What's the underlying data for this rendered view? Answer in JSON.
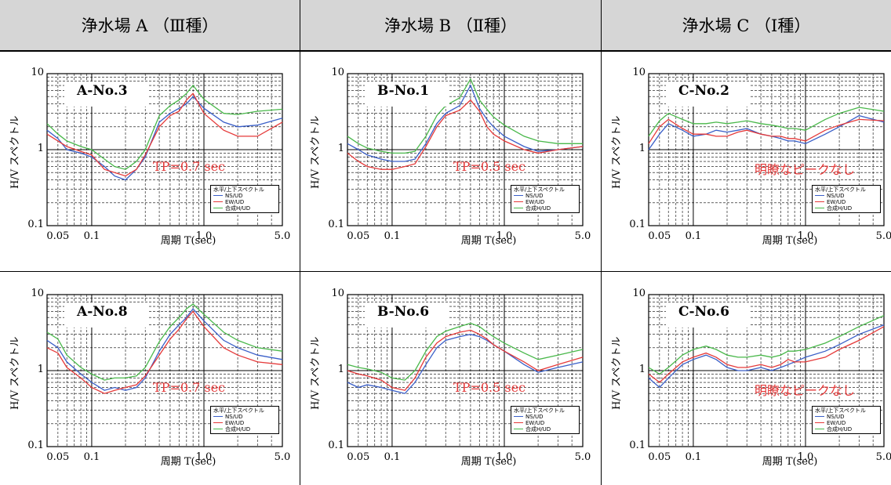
{
  "headers": [
    "浄水場 A （Ⅲ種）",
    "浄水場 B （Ⅱ種）",
    "浄水場 C （Ⅰ種）"
  ],
  "axis": {
    "ylabel": "H/V スペクトル",
    "xlabel": "周期 T(sec)",
    "y_ticks": [
      "10",
      "1",
      "0.1"
    ],
    "x_ticks": [
      "0.05",
      "0.1",
      "1.0",
      "5.0"
    ]
  },
  "legend": {
    "title": "水平/上下スペクトル",
    "items": [
      "NS/UD",
      "EW/UD",
      "合成H/UD"
    ]
  },
  "colors": {
    "ns": "#3a5fc8",
    "ew": "#e53a3a",
    "h": "#49b84a"
  },
  "chart_data": [
    {
      "type": "line",
      "title": "A-No.3",
      "annotation": "TP=0.7 sec",
      "x_scale": "log",
      "y_scale": "log",
      "xlim": [
        0.04,
        5.0
      ],
      "ylim": [
        0.1,
        10
      ],
      "grid": true,
      "legend_position": "bottom-right",
      "series": [
        {
          "name": "NS/UD",
          "x": [
            0.04,
            0.05,
            0.06,
            0.08,
            0.1,
            0.13,
            0.16,
            0.2,
            0.25,
            0.3,
            0.4,
            0.5,
            0.6,
            0.7,
            0.8,
            1.0,
            1.5,
            2.0,
            3.0,
            5.0
          ],
          "y": [
            1.8,
            1.4,
            1.0,
            0.9,
            0.8,
            0.6,
            0.45,
            0.4,
            0.55,
            0.8,
            2.3,
            3.0,
            3.5,
            4.0,
            5.0,
            3.5,
            2.3,
            2.0,
            2.1,
            2.6
          ]
        },
        {
          "name": "EW/UD",
          "x": [
            0.04,
            0.05,
            0.06,
            0.08,
            0.1,
            0.13,
            0.16,
            0.2,
            0.25,
            0.3,
            0.4,
            0.5,
            0.6,
            0.7,
            0.8,
            1.0,
            1.5,
            2.0,
            3.0,
            5.0
          ],
          "y": [
            1.6,
            1.3,
            1.1,
            0.95,
            0.85,
            0.55,
            0.5,
            0.45,
            0.55,
            0.85,
            2.0,
            2.8,
            3.2,
            4.5,
            5.5,
            3.0,
            1.8,
            1.5,
            1.5,
            2.3
          ]
        },
        {
          "name": "合成H/UD",
          "x": [
            0.04,
            0.05,
            0.06,
            0.08,
            0.1,
            0.13,
            0.16,
            0.2,
            0.25,
            0.3,
            0.4,
            0.5,
            0.6,
            0.7,
            0.8,
            1.0,
            1.5,
            2.0,
            3.0,
            5.0
          ],
          "y": [
            2.2,
            1.6,
            1.3,
            1.1,
            1.0,
            0.75,
            0.6,
            0.55,
            0.7,
            1.0,
            2.8,
            3.8,
            4.5,
            5.5,
            7.0,
            4.6,
            3.0,
            2.9,
            3.2,
            3.4
          ]
        }
      ]
    },
    {
      "type": "line",
      "title": "B-No.1",
      "annotation": "TP=0.5 sec",
      "x_scale": "log",
      "y_scale": "log",
      "xlim": [
        0.04,
        5.0
      ],
      "ylim": [
        0.1,
        10
      ],
      "grid": true,
      "legend_position": "bottom-right",
      "series": [
        {
          "name": "NS/UD",
          "x": [
            0.04,
            0.05,
            0.06,
            0.08,
            0.1,
            0.13,
            0.16,
            0.2,
            0.25,
            0.3,
            0.4,
            0.5,
            0.6,
            0.7,
            0.8,
            1.0,
            1.5,
            2.0,
            3.0,
            5.0
          ],
          "y": [
            1.2,
            1.0,
            0.85,
            0.75,
            0.7,
            0.7,
            0.75,
            1.2,
            2.2,
            3.0,
            3.8,
            7.0,
            3.5,
            2.5,
            2.0,
            1.5,
            1.1,
            0.95,
            1.0,
            1.1
          ]
        },
        {
          "name": "EW/UD",
          "x": [
            0.04,
            0.05,
            0.06,
            0.08,
            0.1,
            0.13,
            0.16,
            0.2,
            0.25,
            0.3,
            0.4,
            0.5,
            0.6,
            0.7,
            0.8,
            1.0,
            1.5,
            2.0,
            3.0,
            5.0
          ],
          "y": [
            0.9,
            0.7,
            0.6,
            0.55,
            0.55,
            0.6,
            0.65,
            1.1,
            2.0,
            2.8,
            3.3,
            4.5,
            3.2,
            2.0,
            1.6,
            1.3,
            1.0,
            0.9,
            1.0,
            1.1
          ]
        },
        {
          "name": "合成H/UD",
          "x": [
            0.04,
            0.05,
            0.06,
            0.08,
            0.1,
            0.13,
            0.16,
            0.2,
            0.25,
            0.3,
            0.4,
            0.5,
            0.6,
            0.7,
            0.8,
            1.0,
            1.5,
            2.0,
            3.0,
            5.0
          ],
          "y": [
            1.5,
            1.2,
            1.05,
            0.95,
            0.9,
            0.9,
            0.95,
            1.5,
            2.8,
            3.8,
            4.8,
            8.5,
            4.5,
            3.4,
            2.7,
            2.1,
            1.5,
            1.3,
            1.2,
            1.2
          ]
        }
      ]
    },
    {
      "type": "line",
      "title": "C-No.2",
      "annotation": "明瞭なピークなし",
      "x_scale": "log",
      "y_scale": "log",
      "xlim": [
        0.04,
        5.0
      ],
      "ylim": [
        0.1,
        10
      ],
      "grid": true,
      "legend_position": "bottom-right",
      "series": [
        {
          "name": "NS/UD",
          "x": [
            0.04,
            0.05,
            0.06,
            0.08,
            0.1,
            0.13,
            0.16,
            0.2,
            0.25,
            0.3,
            0.4,
            0.5,
            0.6,
            0.7,
            0.8,
            1.0,
            1.5,
            2.0,
            3.0,
            5.0
          ],
          "y": [
            1.0,
            1.6,
            2.2,
            1.8,
            1.5,
            1.6,
            1.8,
            1.7,
            1.8,
            1.9,
            1.6,
            1.5,
            1.4,
            1.3,
            1.3,
            1.2,
            1.6,
            2.0,
            2.8,
            2.3
          ]
        },
        {
          "name": "EW/UD",
          "x": [
            0.04,
            0.05,
            0.06,
            0.08,
            0.1,
            0.13,
            0.16,
            0.2,
            0.25,
            0.3,
            0.4,
            0.5,
            0.6,
            0.7,
            0.8,
            1.0,
            1.5,
            2.0,
            3.0,
            5.0
          ],
          "y": [
            1.2,
            2.0,
            2.5,
            1.9,
            1.6,
            1.6,
            1.5,
            1.5,
            1.7,
            1.8,
            1.6,
            1.5,
            1.5,
            1.4,
            1.4,
            1.3,
            1.8,
            2.1,
            2.5,
            2.4
          ]
        },
        {
          "name": "合成H/UD",
          "x": [
            0.04,
            0.05,
            0.06,
            0.08,
            0.1,
            0.13,
            0.16,
            0.2,
            0.25,
            0.3,
            0.4,
            0.5,
            0.6,
            0.7,
            0.8,
            1.0,
            1.5,
            2.0,
            3.0,
            5.0
          ],
          "y": [
            1.5,
            2.4,
            3.0,
            2.5,
            2.2,
            2.2,
            2.3,
            2.2,
            2.3,
            2.4,
            2.2,
            2.1,
            2.0,
            1.9,
            1.9,
            1.8,
            2.5,
            3.0,
            3.6,
            3.2
          ]
        }
      ]
    },
    {
      "type": "line",
      "title": "A-No.8",
      "annotation": "TP=0.7 sec",
      "x_scale": "log",
      "y_scale": "log",
      "xlim": [
        0.04,
        5.0
      ],
      "ylim": [
        0.1,
        10
      ],
      "grid": true,
      "legend_position": "bottom-right",
      "series": [
        {
          "name": "NS/UD",
          "x": [
            0.04,
            0.05,
            0.06,
            0.08,
            0.1,
            0.13,
            0.16,
            0.2,
            0.25,
            0.3,
            0.4,
            0.5,
            0.6,
            0.7,
            0.8,
            1.0,
            1.5,
            2.0,
            3.0,
            5.0
          ],
          "y": [
            2.5,
            2.0,
            1.3,
            0.9,
            0.7,
            0.55,
            0.6,
            0.55,
            0.6,
            0.8,
            1.8,
            3.0,
            4.0,
            5.0,
            6.5,
            4.5,
            2.5,
            2.0,
            1.6,
            1.4
          ]
        },
        {
          "name": "EW/UD",
          "x": [
            0.04,
            0.05,
            0.06,
            0.08,
            0.1,
            0.13,
            0.16,
            0.2,
            0.25,
            0.3,
            0.4,
            0.5,
            0.6,
            0.7,
            0.8,
            1.0,
            1.5,
            2.0,
            3.0,
            5.0
          ],
          "y": [
            2.0,
            1.7,
            1.1,
            0.8,
            0.6,
            0.5,
            0.55,
            0.6,
            0.65,
            0.85,
            1.6,
            2.6,
            3.5,
            4.8,
            6.0,
            3.8,
            2.0,
            1.6,
            1.3,
            1.2
          ]
        },
        {
          "name": "合成H/UD",
          "x": [
            0.04,
            0.05,
            0.06,
            0.08,
            0.1,
            0.13,
            0.16,
            0.2,
            0.25,
            0.3,
            0.4,
            0.5,
            0.6,
            0.7,
            0.8,
            1.0,
            1.5,
            2.0,
            3.0,
            5.0
          ],
          "y": [
            3.2,
            2.6,
            1.6,
            1.1,
            0.9,
            0.75,
            0.8,
            0.8,
            0.85,
            1.1,
            2.4,
            3.8,
            5.0,
            6.5,
            7.5,
            5.5,
            3.2,
            2.5,
            2.0,
            1.8
          ]
        }
      ]
    },
    {
      "type": "line",
      "title": "B-No.6",
      "annotation": "TP=0.5 sec",
      "x_scale": "log",
      "y_scale": "log",
      "xlim": [
        0.04,
        5.0
      ],
      "ylim": [
        0.1,
        10
      ],
      "grid": true,
      "legend_position": "bottom-right",
      "series": [
        {
          "name": "NS/UD",
          "x": [
            0.04,
            0.05,
            0.06,
            0.08,
            0.1,
            0.13,
            0.16,
            0.2,
            0.25,
            0.3,
            0.4,
            0.5,
            0.6,
            0.7,
            0.8,
            1.0,
            1.5,
            2.0,
            3.0,
            5.0
          ],
          "y": [
            0.7,
            0.6,
            0.65,
            0.6,
            0.55,
            0.5,
            0.7,
            1.2,
            2.0,
            2.5,
            2.8,
            3.0,
            2.8,
            2.5,
            2.2,
            1.8,
            1.2,
            0.95,
            1.1,
            1.3
          ]
        },
        {
          "name": "EW/UD",
          "x": [
            0.04,
            0.05,
            0.06,
            0.08,
            0.1,
            0.13,
            0.16,
            0.2,
            0.25,
            0.3,
            0.4,
            0.5,
            0.6,
            0.7,
            0.8,
            1.0,
            1.5,
            2.0,
            3.0,
            5.0
          ],
          "y": [
            1.0,
            0.9,
            0.85,
            0.75,
            0.6,
            0.55,
            0.8,
            1.5,
            2.3,
            2.8,
            3.2,
            3.4,
            3.0,
            2.6,
            2.2,
            1.8,
            1.3,
            1.0,
            1.2,
            1.5
          ]
        },
        {
          "name": "合成H/UD",
          "x": [
            0.04,
            0.05,
            0.06,
            0.08,
            0.1,
            0.13,
            0.16,
            0.2,
            0.25,
            0.3,
            0.4,
            0.5,
            0.6,
            0.7,
            0.8,
            1.0,
            1.5,
            2.0,
            3.0,
            5.0
          ],
          "y": [
            1.2,
            1.1,
            1.05,
            0.95,
            0.8,
            0.75,
            1.0,
            1.8,
            2.8,
            3.3,
            3.8,
            4.2,
            3.8,
            3.2,
            2.8,
            2.3,
            1.7,
            1.4,
            1.6,
            1.9
          ]
        }
      ]
    },
    {
      "type": "line",
      "title": "C-No.6",
      "annotation": "明瞭なピークなし",
      "x_scale": "log",
      "y_scale": "log",
      "xlim": [
        0.04,
        5.0
      ],
      "ylim": [
        0.1,
        10
      ],
      "grid": true,
      "legend_position": "bottom-right",
      "series": [
        {
          "name": "NS/UD",
          "x": [
            0.04,
            0.05,
            0.06,
            0.08,
            0.1,
            0.13,
            0.16,
            0.2,
            0.25,
            0.3,
            0.4,
            0.5,
            0.6,
            0.7,
            0.8,
            1.0,
            1.5,
            2.0,
            3.0,
            5.0
          ],
          "y": [
            0.8,
            0.6,
            0.8,
            1.2,
            1.4,
            1.6,
            1.4,
            1.1,
            1.0,
            1.0,
            1.1,
            1.0,
            1.1,
            1.2,
            1.3,
            1.5,
            1.8,
            2.2,
            3.0,
            4.0
          ]
        },
        {
          "name": "EW/UD",
          "x": [
            0.04,
            0.05,
            0.06,
            0.08,
            0.1,
            0.13,
            0.16,
            0.2,
            0.25,
            0.3,
            0.4,
            0.5,
            0.6,
            0.7,
            0.8,
            1.0,
            1.5,
            2.0,
            3.0,
            5.0
          ],
          "y": [
            0.9,
            0.7,
            0.9,
            1.3,
            1.5,
            1.7,
            1.5,
            1.2,
            1.1,
            1.1,
            1.2,
            1.1,
            1.2,
            1.4,
            1.3,
            1.3,
            1.5,
            1.9,
            2.5,
            3.8
          ]
        },
        {
          "name": "合成H/UD",
          "x": [
            0.04,
            0.05,
            0.06,
            0.08,
            0.1,
            0.13,
            0.16,
            0.2,
            0.25,
            0.3,
            0.4,
            0.5,
            0.6,
            0.7,
            0.8,
            1.0,
            1.5,
            2.0,
            3.0,
            5.0
          ],
          "y": [
            1.1,
            0.9,
            1.1,
            1.6,
            1.9,
            2.1,
            1.9,
            1.6,
            1.5,
            1.5,
            1.6,
            1.5,
            1.6,
            1.8,
            1.8,
            1.9,
            2.3,
            2.8,
            3.8,
            5.3
          ]
        }
      ]
    }
  ]
}
